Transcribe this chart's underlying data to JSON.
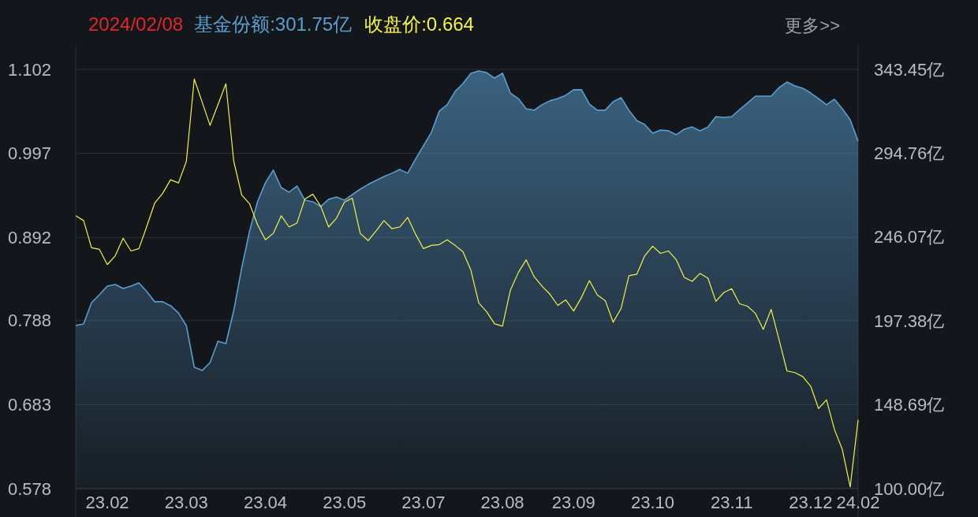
{
  "chart_data": {
    "type": "line",
    "title": "2024/02/08",
    "annotations": [
      "基金份额:301.75亿",
      "收盘价:0.664",
      "更多>>"
    ],
    "categories": [
      null,
      null,
      null,
      null,
      "23.02",
      null,
      null,
      null,
      null,
      null,
      null,
      null,
      null,
      null,
      "23.03",
      null,
      null,
      null,
      null,
      null,
      null,
      null,
      null,
      null,
      "23.04",
      null,
      null,
      null,
      null,
      null,
      null,
      null,
      null,
      null,
      "23.05",
      null,
      null,
      null,
      null,
      null,
      null,
      null,
      null,
      null,
      "23.07",
      null,
      null,
      null,
      null,
      null,
      null,
      null,
      null,
      null,
      "23.08",
      null,
      null,
      null,
      null,
      null,
      null,
      null,
      null,
      "23.09",
      null,
      null,
      null,
      null,
      null,
      null,
      null,
      null,
      null,
      "23.10",
      null,
      null,
      null,
      null,
      null,
      null,
      null,
      null,
      null,
      "23.11",
      null,
      null,
      null,
      null,
      null,
      null,
      null,
      null,
      null,
      "23.12",
      null,
      null,
      null,
      null,
      null,
      "24.02"
    ],
    "series": [
      {
        "type": "area",
        "axis": "y2",
        "color": "#5b9fd0",
        "values": [
          194.7,
          195.6,
          208.0,
          212.6,
          217.6,
          218.5,
          216.2,
          217.6,
          219.4,
          214.4,
          208.5,
          208.5,
          206.2,
          202.0,
          194.7,
          170.5,
          168.6,
          173.2,
          185.6,
          184.2,
          203.4,
          228.1,
          249.6,
          266.6,
          277.6,
          284.9,
          274.8,
          272.1,
          275.7,
          267.5,
          266.6,
          263.8,
          268.0,
          269.3,
          267.5,
          270.7,
          273.9,
          276.6,
          278.9,
          281.2,
          283.1,
          285.3,
          283.1,
          291.3,
          299.1,
          306.8,
          319.2,
          322.9,
          330.6,
          335.2,
          341.2,
          342.5,
          341.6,
          338.4,
          341.2,
          329.7,
          326.5,
          320.6,
          319.7,
          322.9,
          325.2,
          326.5,
          328.4,
          331.6,
          331.6,
          323.3,
          319.7,
          319.7,
          324.7,
          327.0,
          319.7,
          313.7,
          311.4,
          306.4,
          308.2,
          307.8,
          305.5,
          308.7,
          310.0,
          307.8,
          310.0,
          316.0,
          315.5,
          316.0,
          320.1,
          323.8,
          327.9,
          327.9,
          327.9,
          332.9,
          336.1,
          333.8,
          332.5,
          329.7,
          326.5,
          322.9,
          326.1,
          320.6,
          314.2,
          301.75
        ]
      },
      {
        "axis": "y",
        "color": "#f2f24a",
        "values": [
          0.919,
          0.913,
          0.879,
          0.877,
          0.858,
          0.869,
          0.891,
          0.875,
          0.878,
          0.906,
          0.935,
          0.947,
          0.964,
          0.96,
          0.987,
          1.09,
          1.061,
          1.032,
          1.058,
          1.084,
          0.987,
          0.945,
          0.934,
          0.908,
          0.889,
          0.897,
          0.919,
          0.905,
          0.91,
          0.94,
          0.946,
          0.931,
          0.905,
          0.916,
          0.936,
          0.941,
          0.897,
          0.888,
          0.9,
          0.913,
          0.903,
          0.905,
          0.917,
          0.896,
          0.878,
          0.882,
          0.883,
          0.889,
          0.882,
          0.874,
          0.851,
          0.81,
          0.799,
          0.784,
          0.781,
          0.826,
          0.848,
          0.864,
          0.843,
          0.831,
          0.821,
          0.807,
          0.814,
          0.8,
          0.817,
          0.838,
          0.82,
          0.813,
          0.786,
          0.803,
          0.844,
          0.846,
          0.869,
          0.881,
          0.872,
          0.875,
          0.864,
          0.842,
          0.837,
          0.847,
          0.841,
          0.812,
          0.823,
          0.828,
          0.809,
          0.806,
          0.797,
          0.777,
          0.802,
          0.764,
          0.725,
          0.723,
          0.718,
          0.706,
          0.678,
          0.689,
          0.652,
          0.627,
          0.58,
          0.664
        ]
      }
    ],
    "ylim": [
      0.578,
      1.102
    ],
    "yticks": [
      0.578,
      0.683,
      0.788,
      0.892,
      0.997,
      1.102
    ],
    "y2lim": [
      100,
      343.45
    ],
    "y2ticks": [
      {
        "value": 100,
        "label": "100.00亿"
      },
      {
        "value": 148.69,
        "label": "148.69亿"
      },
      {
        "value": 197.38,
        "label": "197.38亿"
      },
      {
        "value": 246.07,
        "label": "246.07亿"
      },
      {
        "value": 294.76,
        "label": "294.76亿"
      },
      {
        "value": 343.45,
        "label": "343.45亿"
      }
    ],
    "grid": "y"
  }
}
